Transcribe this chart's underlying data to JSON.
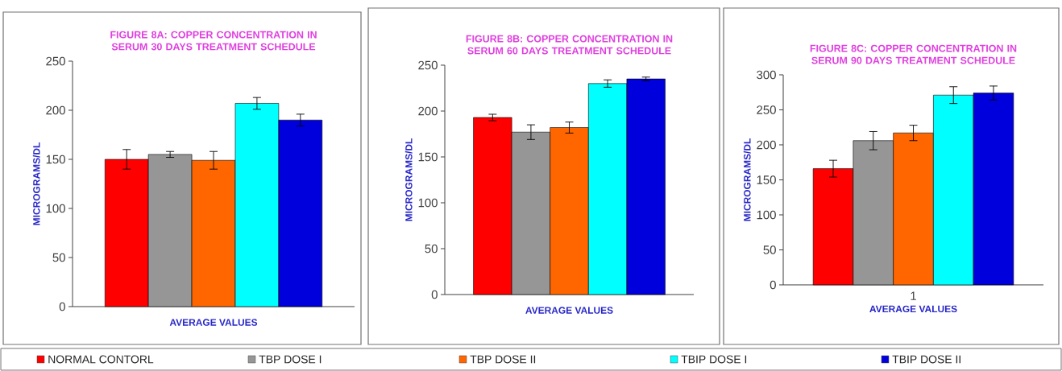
{
  "chart_data": [
    {
      "type": "bar",
      "title": "FIGURE 8A: COPPER CONCENTRATION IN SERUM 30 DAYS TREATMENT SCHEDULE",
      "xlabel": "AVERAGE VALUES",
      "ylabel": "MICROGRAMS/DL",
      "categories": [
        null
      ],
      "ylim": [
        0,
        250
      ],
      "yticks": [
        0,
        50,
        100,
        150,
        200,
        250
      ],
      "legend": "bottom",
      "series": [
        {
          "name": "NORMAL CONTORL",
          "color": "#ff0000",
          "values": [
            150
          ],
          "errors": [
            10
          ]
        },
        {
          "name": "TBP DOSE I",
          "color": "#969696",
          "values": [
            155
          ],
          "errors": [
            3
          ]
        },
        {
          "name": "TBP DOSE II",
          "color": "#ff6600",
          "values": [
            149
          ],
          "errors": [
            9
          ]
        },
        {
          "name": "TBIP DOSE I",
          "color": "#00ffff",
          "values": [
            207
          ],
          "errors": [
            6
          ]
        },
        {
          "name": "TBIP DOSE II",
          "color": "#0000dd",
          "values": [
            190
          ],
          "errors": [
            6
          ]
        }
      ]
    },
    {
      "type": "bar",
      "title": "FIGURE 8B: COPPER CONCENTRATION IN SERUM 60 DAYS TREATMENT SCHEDULE",
      "xlabel": "AVERAGE VALUES",
      "ylabel": "MICROGRAMS/DL",
      "categories": [
        null
      ],
      "ylim": [
        0,
        250
      ],
      "yticks": [
        0,
        50,
        100,
        150,
        200,
        250
      ],
      "series": [
        {
          "color": "#ff0000",
          "values": [
            193
          ],
          "errors": [
            3.5
          ]
        },
        {
          "color": "#969696",
          "values": [
            177
          ],
          "errors": [
            8
          ]
        },
        {
          "color": "#ff6600",
          "values": [
            182
          ],
          "errors": [
            6
          ]
        },
        {
          "color": "#00ffff",
          "values": [
            230
          ],
          "errors": [
            4
          ]
        },
        {
          "color": "#0000dd",
          "values": [
            235
          ],
          "errors": [
            2
          ]
        }
      ]
    },
    {
      "type": "bar",
      "title": "FIGURE 8C: COPPER CONCENTRATION IN SERUM 90 DAYS TREATMENT SCHEDULE",
      "xlabel": "AVERAGE VALUES",
      "ylabel": "MICROGRAMS/DL",
      "categories": [
        "1"
      ],
      "ylim": [
        0,
        300
      ],
      "yticks": [
        0,
        50,
        100,
        150,
        200,
        250,
        300
      ],
      "series": [
        {
          "color": "#ff0000",
          "values": [
            166
          ],
          "errors": [
            12
          ]
        },
        {
          "color": "#969696",
          "values": [
            206
          ],
          "errors": [
            13
          ]
        },
        {
          "color": "#ff6600",
          "values": [
            217
          ],
          "errors": [
            11
          ]
        },
        {
          "color": "#00ffff",
          "values": [
            271
          ],
          "errors": [
            12
          ]
        },
        {
          "color": "#0000dd",
          "values": [
            274
          ],
          "errors": [
            10
          ]
        }
      ]
    }
  ]
}
